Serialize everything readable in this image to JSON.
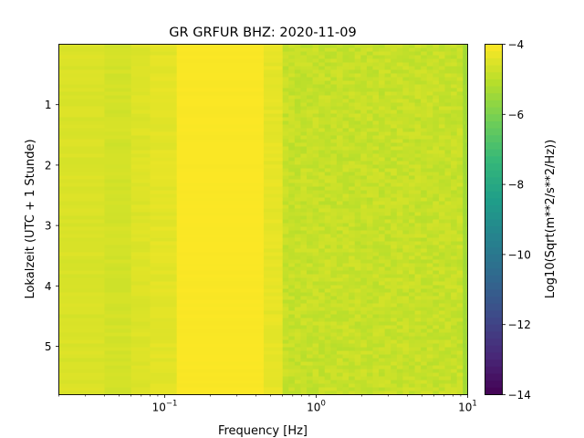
{
  "chart_data": {
    "type": "heatmap",
    "title": "GR GRFUR  BHZ: 2020-11-09",
    "xlabel": "Frequency [Hz]",
    "ylabel": "Lokalzeit (UTC + 1 Stunde)",
    "x_scale": "log",
    "xlim": [
      0.02,
      10
    ],
    "x_ticks": [
      {
        "value": 0.1,
        "base": "10",
        "exp": "−1"
      },
      {
        "value": 1,
        "base": "10",
        "exp": "0"
      },
      {
        "value": 10,
        "base": "10",
        "exp": "1"
      }
    ],
    "ylim": [
      0.0,
      5.8
    ],
    "y_inverted": true,
    "y_ticks": [
      {
        "value": 1,
        "label": "1"
      },
      {
        "value": 2,
        "label": "2"
      },
      {
        "value": 3,
        "label": "3"
      },
      {
        "value": 4,
        "label": "4"
      },
      {
        "value": 5,
        "label": "5"
      }
    ],
    "colorbar": {
      "label": "Log10(Sqrt(m**2/s**2/Hz))",
      "range": [
        -14,
        -4
      ],
      "colormap": "viridis",
      "ticks": [
        {
          "value": -4,
          "label": "−4"
        },
        {
          "value": -6,
          "label": "−6"
        },
        {
          "value": -8,
          "label": "−8"
        },
        {
          "value": -10,
          "label": "−10"
        },
        {
          "value": -12,
          "label": "−12"
        },
        {
          "value": -14,
          "label": "−14"
        }
      ]
    },
    "frequency_bands": [
      {
        "f_min": 0.02,
        "f_max": 0.04,
        "value": -4.55
      },
      {
        "f_min": 0.04,
        "f_max": 0.06,
        "value": -4.65
      },
      {
        "f_min": 0.06,
        "f_max": 0.08,
        "value": -4.5
      },
      {
        "f_min": 0.08,
        "f_max": 0.12,
        "value": -4.4
      },
      {
        "f_min": 0.12,
        "f_max": 0.45,
        "value": -4.05
      },
      {
        "f_min": 0.45,
        "f_max": 0.6,
        "value": -4.35
      },
      {
        "f_min": 0.6,
        "f_max": 9.3,
        "value": -4.85
      },
      {
        "f_min": 9.3,
        "f_max": 10,
        "value": -5.4
      }
    ],
    "grid": false
  }
}
